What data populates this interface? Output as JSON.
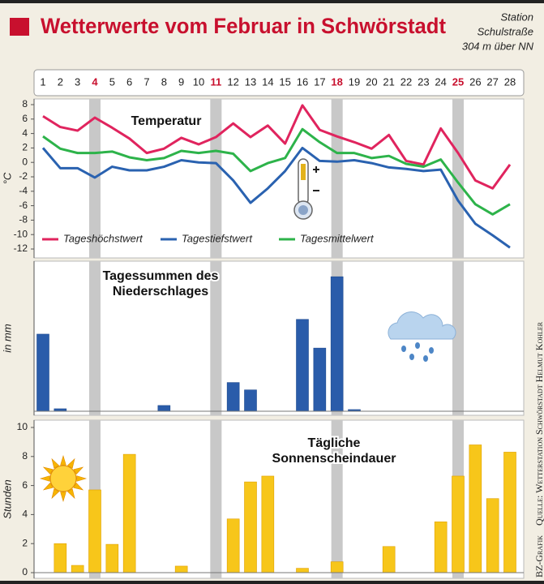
{
  "header": {
    "title": "Wetterwerte vom Februar in Schwörstadt",
    "station": [
      "Station",
      "Schulstraße",
      "304 m über NN"
    ]
  },
  "credit": {
    "agency": "BZ-Grafik",
    "source": "Quelle: Wetterstation Schwörstadt Helmut Kohler"
  },
  "chart_data": [
    {
      "type": "line",
      "title": [
        "Temperatur"
      ],
      "y_label": "°C",
      "categories": [
        1,
        2,
        3,
        4,
        5,
        6,
        7,
        8,
        9,
        10,
        11,
        12,
        13,
        14,
        15,
        16,
        17,
        18,
        19,
        20,
        21,
        22,
        23,
        24,
        25,
        26,
        27,
        28
      ],
      "highlight": [
        4,
        11,
        18,
        25
      ],
      "highlight_color": "#c8102e",
      "band_color": "#c8c8c8",
      "ylim": [
        -12,
        8
      ],
      "yticks": [
        8,
        6,
        4,
        2,
        0,
        -2,
        -4,
        -6,
        -8,
        -10,
        -12
      ],
      "series": [
        {
          "name": "Tageshöchstwert",
          "color": "#e0245e",
          "values": [
            6.4,
            4.9,
            4.4,
            6.2,
            4.8,
            3.3,
            1.3,
            1.9,
            3.4,
            2.5,
            3.5,
            5.4,
            3.5,
            5.1,
            2.6,
            7.9,
            4.5,
            3.6,
            2.8,
            1.9,
            3.8,
            0.2,
            -0.3,
            4.7,
            1.3,
            -2.5,
            -3.6,
            -0.3
          ]
        },
        {
          "name": "Tagestiefstwert",
          "color": "#2a62b0",
          "values": [
            2.0,
            -0.8,
            -0.8,
            -2.1,
            -0.6,
            -1.1,
            -1.1,
            -0.6,
            0.3,
            0,
            -0.1,
            -2.5,
            -5.6,
            -3.6,
            -1.2,
            2.0,
            0.2,
            0.1,
            0.3,
            -0.1,
            -0.7,
            -0.9,
            -1.2,
            -1.0,
            -5.3,
            -8.5,
            -10.1,
            -11.8
          ]
        },
        {
          "name": "Tagesmittelwert",
          "color": "#2db34a",
          "values": [
            3.6,
            1.9,
            1.3,
            1.3,
            1.5,
            0.7,
            0.3,
            0.6,
            1.6,
            1.3,
            1.6,
            1.2,
            -1.2,
            -0.1,
            0.6,
            4.6,
            2.8,
            1.3,
            1.3,
            0.6,
            0.9,
            -0.2,
            -0.6,
            0.4,
            -2.8,
            -5.8,
            -7.2,
            -5.8
          ]
        }
      ]
    },
    {
      "type": "bar",
      "title": [
        "Tagessummen des",
        "Niederschlages"
      ],
      "y_label": "in mm",
      "color": "#2a5caa",
      "ylim": [
        0,
        18
      ],
      "values": [
        9.4,
        0.3,
        0,
        0,
        0,
        0,
        0,
        0.7,
        0,
        0,
        0,
        3.5,
        2.6,
        0,
        0,
        11.2,
        7.7,
        16.4,
        0.2,
        0,
        0,
        0,
        0,
        0,
        0,
        0,
        0,
        0
      ]
    },
    {
      "type": "bar",
      "title": [
        "Tägliche",
        "Sonnenscheindauer"
      ],
      "y_label": "Stunden",
      "color": "#f7c61a",
      "ylim": [
        0,
        10
      ],
      "yticks": [
        0,
        2,
        4,
        6,
        8,
        10
      ],
      "values": [
        0,
        2.0,
        0.5,
        5.7,
        1.95,
        8.15,
        0,
        0,
        0.45,
        0,
        0,
        3.7,
        6.25,
        6.65,
        0,
        0.3,
        0,
        0.75,
        0,
        0,
        1.8,
        0,
        0,
        3.5,
        6.65,
        8.8,
        5.1,
        8.3
      ]
    }
  ]
}
